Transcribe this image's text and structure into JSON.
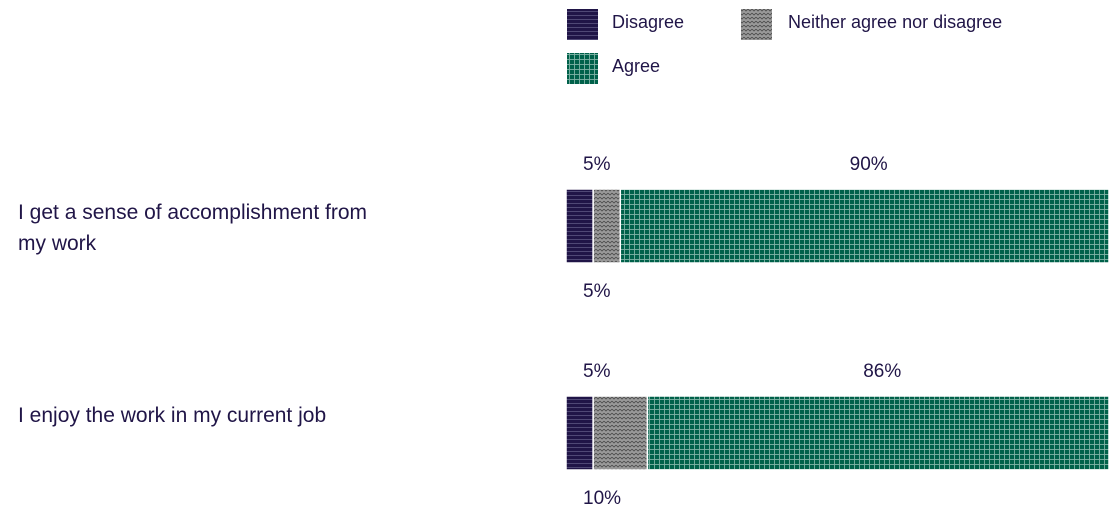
{
  "chart_data": {
    "type": "bar",
    "orientation": "horizontal",
    "stacked": true,
    "categories": [
      "I get a sense of accomplishment from my work",
      "I enjoy the work in my current job"
    ],
    "series": [
      {
        "name": "Disagree",
        "values": [
          5,
          5
        ],
        "color": "#201547"
      },
      {
        "name": "Neither agree nor disagree",
        "values": [
          5,
          10
        ],
        "color": "#8f8f8f"
      },
      {
        "name": "Agree",
        "values": [
          90,
          86
        ],
        "color": "#00614a"
      }
    ],
    "data_labels": [
      [
        "5%",
        "5%"
      ],
      [
        "5%",
        "10%"
      ],
      [
        "90%",
        "86%"
      ]
    ],
    "xlim": [
      0,
      100
    ],
    "grid": false,
    "legend_position": "top"
  }
}
